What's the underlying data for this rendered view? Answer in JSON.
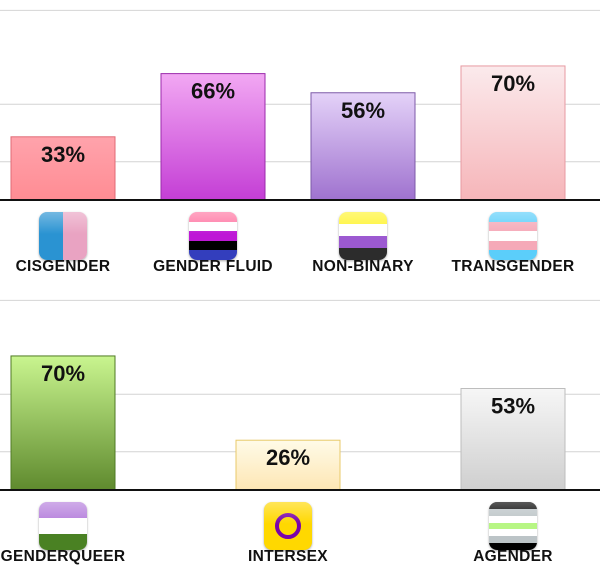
{
  "chart_data": [
    {
      "type": "bar",
      "title": "",
      "xlabel": "",
      "ylabel": "",
      "ylim": [
        0,
        100
      ],
      "grid": true,
      "categories": [
        "CISGENDER",
        "GENDER FLUID",
        "NON-BINARY",
        "TRANSGENDER"
      ],
      "values": [
        33,
        66,
        56,
        70
      ],
      "data_labels": [
        "33%",
        "66%",
        "56%",
        "70%"
      ],
      "colors": [
        [
          "#ffa3ac",
          "#ff8c93"
        ],
        [
          "#f2a8f3",
          "#c43ed5"
        ],
        [
          "#e4d2f8",
          "#9f72cf"
        ],
        [
          "#fbeaec",
          "#f6b5b9"
        ]
      ],
      "edge_colors": [
        "#e06a75",
        "#9b2aab",
        "#7d5aa8",
        "#e79aa2"
      ],
      "flags": [
        {
          "icon": "cisgender-flag-icon",
          "stripes": [],
          "split": [
            "#2a93d2",
            "#e9a3c2"
          ]
        },
        {
          "icon": "gender-fluid-flag-icon",
          "stripes": [
            "#ff75a2",
            "#ffffff",
            "#be18d6",
            "#000000",
            "#333ebd"
          ]
        },
        {
          "icon": "non-binary-flag-icon",
          "stripes": [
            "#fff430",
            "#ffffff",
            "#9c59d1",
            "#2c2c2c"
          ]
        },
        {
          "icon": "transgender-flag-icon",
          "stripes": [
            "#5bcefa",
            "#f5a9b8",
            "#ffffff",
            "#f5a9b8",
            "#5bcefa"
          ]
        }
      ]
    },
    {
      "type": "bar",
      "title": "",
      "xlabel": "",
      "ylabel": "",
      "ylim": [
        0,
        100
      ],
      "grid": true,
      "categories": [
        "GENDERQUEER",
        "INTERSEX",
        "AGENDER"
      ],
      "values": [
        70,
        26,
        53
      ],
      "data_labels": [
        "70%",
        "26%",
        "53%"
      ],
      "colors": [
        [
          "#c9f58f",
          "#5f8a2e"
        ],
        [
          "#fffbe8",
          "#fde6b4"
        ],
        [
          "#f6f6f6",
          "#cfcfcf"
        ]
      ],
      "edge_colors": [
        "#4f7a24",
        "#e8c96a",
        "#bdbdbd"
      ],
      "flags": [
        {
          "icon": "genderqueer-flag-icon",
          "stripes": [
            "#b57edc",
            "#ffffff",
            "#4a8123"
          ]
        },
        {
          "icon": "intersex-flag-icon",
          "stripes": [],
          "circle": [
            "#ffd800",
            "#7902aa"
          ]
        },
        {
          "icon": "agender-flag-icon",
          "stripes": [
            "#000000",
            "#bcc4c7",
            "#ffffff",
            "#b7f684",
            "#ffffff",
            "#bcc4c7",
            "#000000"
          ]
        }
      ]
    }
  ]
}
